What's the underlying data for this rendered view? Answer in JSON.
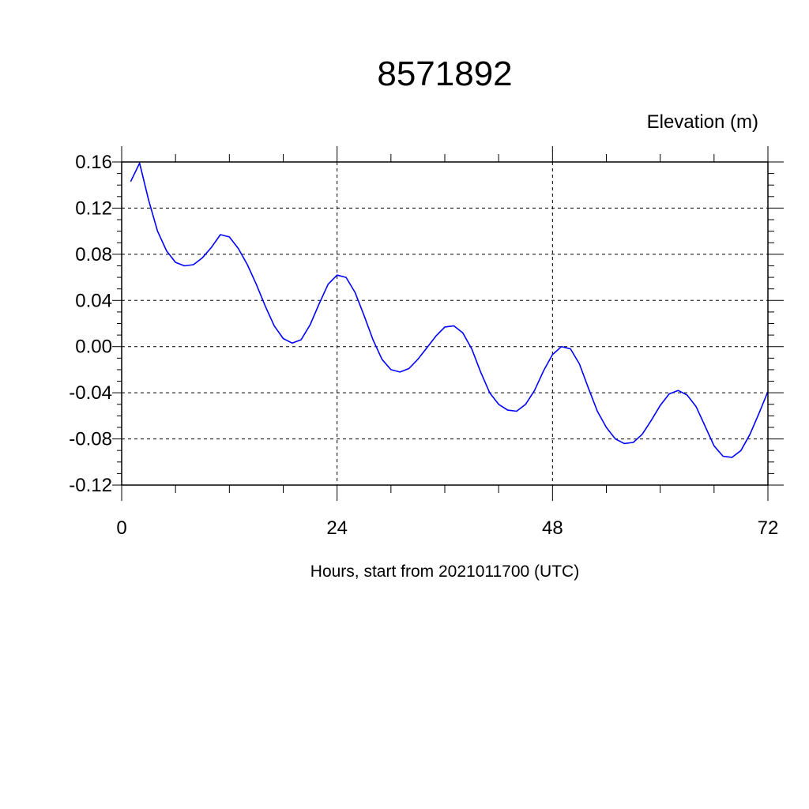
{
  "chart_data": {
    "type": "line",
    "title": "8571892",
    "ylabel": "Elevation (m)",
    "xlabel": "Hours, start from 2021011700 (UTC)",
    "xlim": [
      0,
      72
    ],
    "ylim": [
      -0.12,
      0.16
    ],
    "x_ticks": [
      0,
      24,
      48,
      72
    ],
    "x_tick_labels": [
      "0",
      "24",
      "48",
      "72"
    ],
    "y_ticks": [
      0.16,
      0.12,
      0.08,
      0.04,
      0.0,
      -0.04,
      -0.08,
      -0.12
    ],
    "y_tick_labels": [
      "0.16",
      "0.12",
      "0.08",
      "0.04",
      "0.00",
      "-0.04",
      "-0.08",
      "-0.12"
    ],
    "grid": true,
    "line_color": "#0000ff",
    "series": [
      {
        "x": [
          1,
          2,
          3,
          4,
          5,
          6,
          7,
          8,
          9,
          10,
          11,
          12,
          13,
          14,
          15,
          16,
          17,
          18,
          19,
          20,
          21,
          22,
          23,
          24,
          25,
          26,
          27,
          28,
          29,
          30,
          31,
          32,
          33,
          34,
          35,
          36,
          37,
          38,
          39,
          40,
          41,
          42,
          43,
          44,
          45,
          46,
          47,
          48,
          49,
          50,
          51,
          52,
          53,
          54,
          55,
          56,
          57,
          58,
          59,
          60,
          61,
          62,
          63,
          64,
          65,
          66,
          67,
          68,
          69,
          70,
          71,
          72
        ],
        "values": [
          0.143,
          0.159,
          0.127,
          0.1,
          0.083,
          0.073,
          0.07,
          0.071,
          0.077,
          0.086,
          0.097,
          0.095,
          0.085,
          0.071,
          0.054,
          0.035,
          0.018,
          0.007,
          0.003,
          0.006,
          0.019,
          0.037,
          0.054,
          0.062,
          0.06,
          0.047,
          0.027,
          0.006,
          -0.011,
          -0.02,
          -0.022,
          -0.019,
          -0.011,
          -0.001,
          0.009,
          0.017,
          0.018,
          0.012,
          -0.002,
          -0.022,
          -0.04,
          -0.05,
          -0.055,
          -0.056,
          -0.05,
          -0.038,
          -0.021,
          -0.007,
          0.0,
          -0.002,
          -0.015,
          -0.036,
          -0.056,
          -0.07,
          -0.08,
          -0.084,
          -0.083,
          -0.076,
          -0.064,
          -0.051,
          -0.041,
          -0.038,
          -0.042,
          -0.052,
          -0.069,
          -0.086,
          -0.095,
          -0.096,
          -0.09,
          -0.076,
          -0.058,
          -0.039
        ]
      }
    ]
  }
}
